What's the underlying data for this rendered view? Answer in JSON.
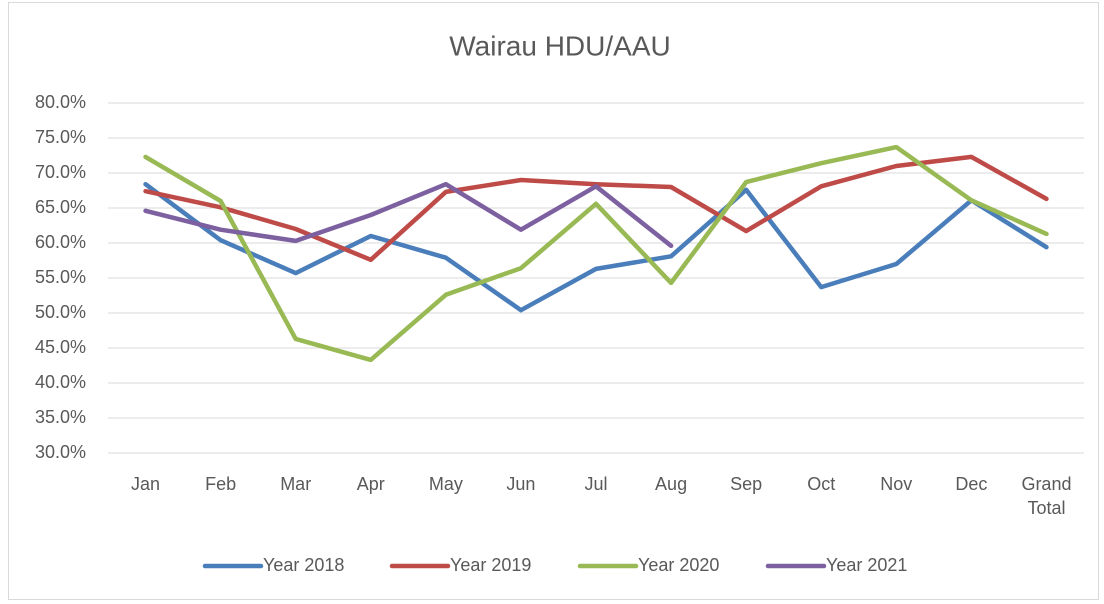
{
  "chart_data": {
    "type": "line",
    "title": "Wairau HDU/AAU",
    "categories": [
      "Jan",
      "Feb",
      "Mar",
      "Apr",
      "May",
      "Jun",
      "Jul",
      "Aug",
      "Sep",
      "Oct",
      "Nov",
      "Dec",
      "Grand Total"
    ],
    "series": [
      {
        "name": "Year 2018",
        "color": "#4a7ebb",
        "values": [
          68.4,
          60.4,
          55.7,
          61.0,
          57.9,
          50.4,
          56.3,
          58.1,
          67.6,
          53.7,
          57.0,
          66.1,
          59.4
        ]
      },
      {
        "name": "Year 2019",
        "color": "#be4b48",
        "values": [
          67.4,
          65.1,
          62.0,
          57.6,
          67.3,
          69.0,
          68.4,
          68.0,
          61.7,
          68.1,
          71.0,
          72.3,
          66.3
        ]
      },
      {
        "name": "Year 2020",
        "color": "#98b954",
        "values": [
          72.3,
          66.0,
          46.3,
          43.3,
          52.6,
          56.4,
          65.6,
          54.3,
          68.7,
          71.4,
          73.7,
          66.1,
          61.3
        ]
      },
      {
        "name": "Year 2021",
        "color": "#7d60a0",
        "values": [
          64.6,
          61.9,
          60.3,
          64.0,
          68.4,
          61.9,
          68.1,
          59.6,
          null,
          null,
          null,
          null,
          null
        ]
      }
    ],
    "ylim": [
      30,
      80
    ],
    "yticks": [
      {
        "value": 30,
        "label": "30.0%"
      },
      {
        "value": 35,
        "label": "35.0%"
      },
      {
        "value": 40,
        "label": "40.0%"
      },
      {
        "value": 45,
        "label": "45.0%"
      },
      {
        "value": 50,
        "label": "50.0%"
      },
      {
        "value": 55,
        "label": "55.0%"
      },
      {
        "value": 60,
        "label": "60.0%"
      },
      {
        "value": 65,
        "label": "65.0%"
      },
      {
        "value": 70,
        "label": "70.0%"
      },
      {
        "value": 75,
        "label": "75.0%"
      },
      {
        "value": 80,
        "label": "80.0%"
      }
    ],
    "grid": true,
    "legend": "bottom"
  }
}
